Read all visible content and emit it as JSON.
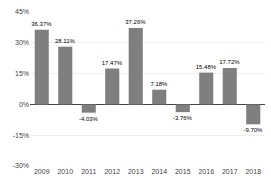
{
  "chart_data": {
    "type": "bar",
    "categories": [
      "2009",
      "2010",
      "2011",
      "2012",
      "2013",
      "2014",
      "2015",
      "2016",
      "2017",
      "2018"
    ],
    "values": [
      36.37,
      28.11,
      -4.03,
      17.47,
      37.26,
      7.18,
      -3.76,
      15.48,
      17.72,
      -9.7
    ],
    "value_labels": [
      "36.37%",
      "28.11%",
      "-4.03%",
      "17.47%",
      "37.26%",
      "7.18%",
      "-3.76%",
      "15.48%",
      "17.72%",
      "-9.70%"
    ],
    "data_labels": true,
    "color": "#7f7f7f",
    "ylim": [
      -30,
      45
    ],
    "yticks": [
      {
        "value": -30,
        "label": "-30%"
      },
      {
        "value": -15,
        "label": "-15%"
      },
      {
        "value": 0,
        "label": "0%"
      },
      {
        "value": 15,
        "label": "15%"
      },
      {
        "value": 30,
        "label": "30%"
      },
      {
        "value": 45,
        "label": "45%"
      }
    ],
    "grid": true
  }
}
